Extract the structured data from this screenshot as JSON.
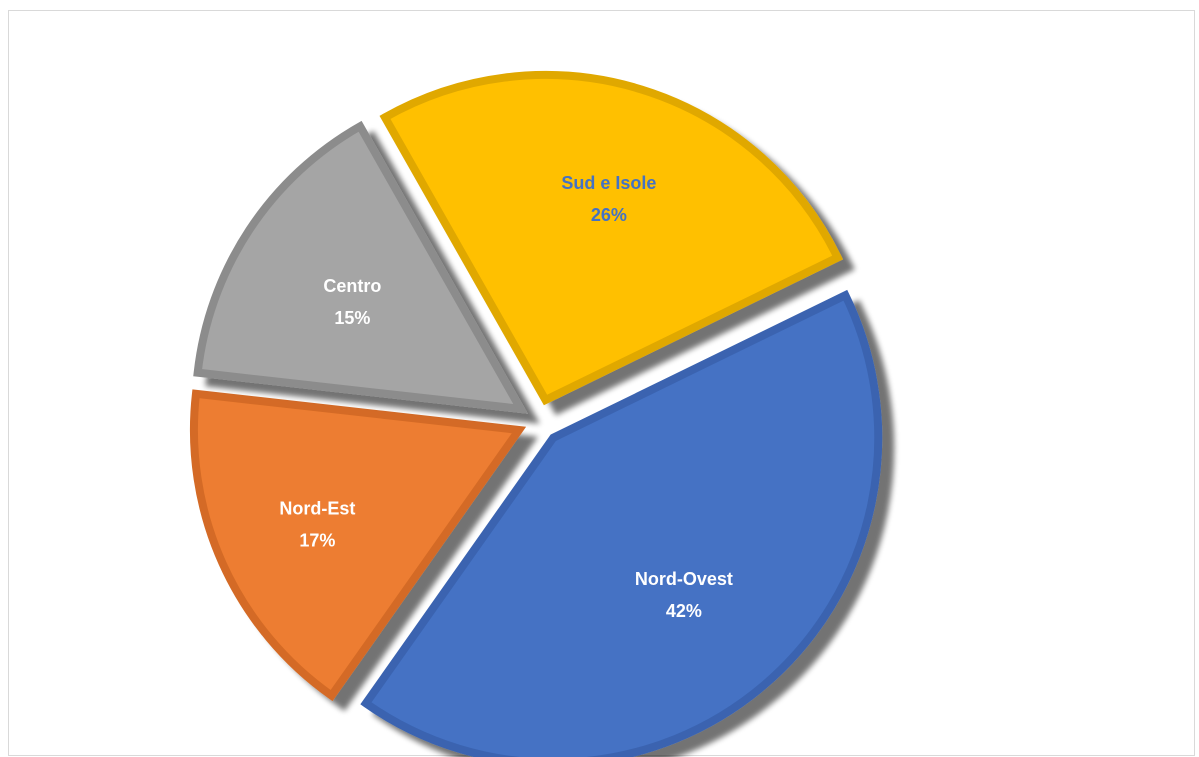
{
  "chart_data": {
    "type": "pie",
    "title": "",
    "slices": [
      {
        "label": "Nord-Ovest",
        "value": 42,
        "value_label": "42%",
        "color": "#4472C4",
        "edge": "#3A63B0",
        "text_color": "#ffffff"
      },
      {
        "label": "Nord-Est",
        "value": 17,
        "value_label": "17%",
        "color": "#ED7D31",
        "edge": "#D46B25",
        "text_color": "#ffffff"
      },
      {
        "label": "Centro",
        "value": 15,
        "value_label": "15%",
        "color": "#A5A5A5",
        "edge": "#8C8C8C",
        "text_color": "#ffffff"
      },
      {
        "label": "Sud e Isole",
        "value": 26,
        "value_label": "26%",
        "color": "#FFC000",
        "edge": "#E0A800",
        "text_color": "#4472C4"
      }
    ],
    "exploded": true,
    "legend": "none",
    "shadow": true
  }
}
